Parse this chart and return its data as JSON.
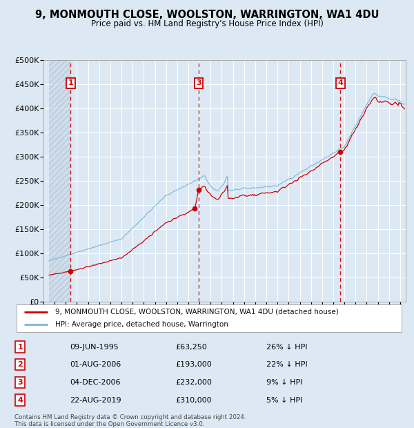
{
  "title": "9, MONMOUTH CLOSE, WOOLSTON, WARRINGTON, WA1 4DU",
  "subtitle": "Price paid vs. HM Land Registry's House Price Index (HPI)",
  "xlim": [
    1993.5,
    2025.5
  ],
  "ylim": [
    0,
    500000
  ],
  "yticks": [
    0,
    50000,
    100000,
    150000,
    200000,
    250000,
    300000,
    350000,
    400000,
    450000,
    500000
  ],
  "ytick_labels": [
    "£0",
    "£50K",
    "£100K",
    "£150K",
    "£200K",
    "£250K",
    "£300K",
    "£350K",
    "£400K",
    "£450K",
    "£500K"
  ],
  "xticks": [
    1993,
    1994,
    1995,
    1996,
    1997,
    1998,
    1999,
    2000,
    2001,
    2002,
    2003,
    2004,
    2005,
    2006,
    2007,
    2008,
    2009,
    2010,
    2011,
    2012,
    2013,
    2014,
    2015,
    2016,
    2017,
    2018,
    2019,
    2020,
    2021,
    2022,
    2023,
    2024,
    2025
  ],
  "background_color": "#dce9f5",
  "plot_bg_color": "#dce9f5",
  "grid_color": "#ffffff",
  "hpi_color": "#7cb4d8",
  "price_color": "#cc0000",
  "marker_color": "#cc0000",
  "vline_color": "#cc0000",
  "sale_points": [
    {
      "label": "1",
      "year": 1995.44,
      "price": 63250
    },
    {
      "label": "2",
      "year": 2006.58,
      "price": 193000
    },
    {
      "label": "3",
      "year": 2006.92,
      "price": 232000
    },
    {
      "label": "4",
      "year": 2019.64,
      "price": 310000
    }
  ],
  "vline_years": [
    1995.44,
    2006.92,
    2019.64
  ],
  "vline_labels": [
    "1",
    "3",
    "4"
  ],
  "table_rows": [
    {
      "num": "1",
      "date": "09-JUN-1995",
      "price": "£63,250",
      "hpi": "26% ↓ HPI"
    },
    {
      "num": "2",
      "date": "01-AUG-2006",
      "price": "£193,000",
      "hpi": "22% ↓ HPI"
    },
    {
      "num": "3",
      "date": "04-DEC-2006",
      "price": "£232,000",
      "hpi": "9% ↓ HPI"
    },
    {
      "num": "4",
      "date": "22-AUG-2019",
      "price": "£310,000",
      "hpi": "5% ↓ HPI"
    }
  ],
  "legend_entries": [
    {
      "label": "9, MONMOUTH CLOSE, WOOLSTON, WARRINGTON, WA1 4DU (detached house)",
      "color": "#cc0000"
    },
    {
      "label": "HPI: Average price, detached house, Warrington",
      "color": "#7cb4d8"
    }
  ],
  "footer": "Contains HM Land Registry data © Crown copyright and database right 2024.\nThis data is licensed under the Open Government Licence v3.0."
}
